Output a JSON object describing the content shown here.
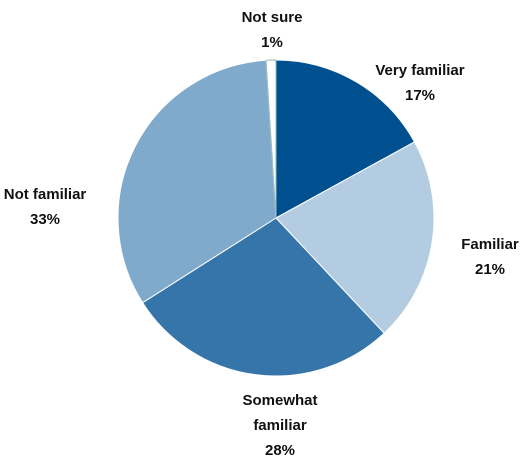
{
  "chart_data": {
    "type": "pie",
    "categories": [
      "Very familiar",
      "Familiar",
      "Somewhat familiar",
      "Not familiar",
      "Not sure"
    ],
    "values": [
      17,
      21,
      28,
      33,
      1
    ],
    "value_labels": [
      "17%",
      "21%",
      "28%",
      "33%",
      "1%"
    ],
    "colors": [
      "#00508f",
      "#b4cce2",
      "#3575aa",
      "#7faacb",
      "#ffffff"
    ]
  }
}
